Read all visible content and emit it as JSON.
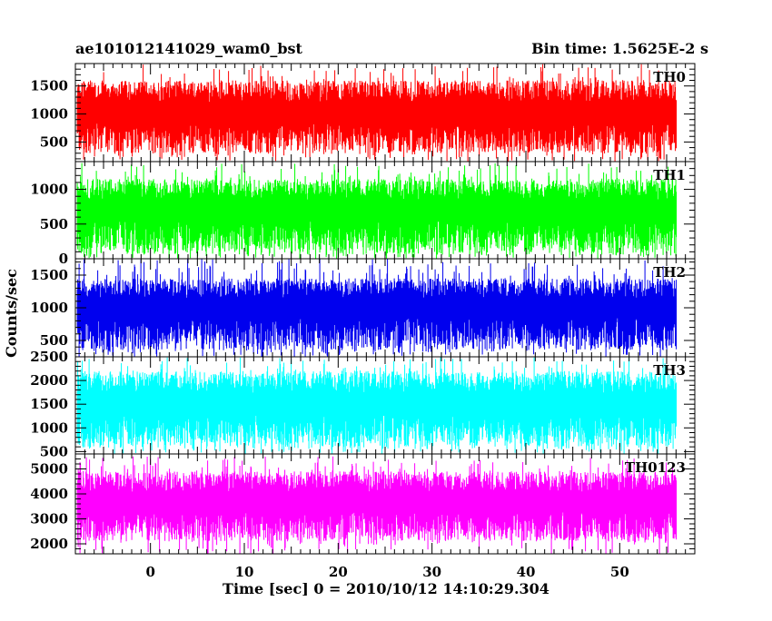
{
  "chart_data": {
    "type": "line",
    "title": "ae101012141029_wam0_bst",
    "subtitle": "Bin time: 1.5625E-2 s",
    "xlabel": "Time [sec] 0 = 2010/10/12 14:10:29.304",
    "ylabel": "Counts/sec",
    "xlim": [
      -8,
      58
    ],
    "xticks": [
      0,
      10,
      20,
      30,
      40,
      50
    ],
    "x_range_of_data": [
      -7.8,
      56.0
    ],
    "grid": false,
    "panels": [
      {
        "name": "TH0",
        "color": "#ff0000",
        "ylim": [
          150,
          1900
        ],
        "yticks": [
          500,
          1000,
          1500
        ],
        "baseline_range": [
          300,
          1600
        ],
        "typical_mean": 900,
        "spike_max": 1900
      },
      {
        "name": "TH1",
        "color": "#00ff00",
        "ylim": [
          0,
          1400
        ],
        "yticks": [
          0,
          500,
          1000
        ],
        "baseline_range": [
          80,
          1150
        ],
        "typical_mean": 600,
        "spike_max": 1380
      },
      {
        "name": "TH2",
        "color": "#0000ee",
        "ylim": [
          250,
          1750
        ],
        "yticks": [
          500,
          1000,
          1500
        ],
        "baseline_range": [
          350,
          1450
        ],
        "typical_mean": 900,
        "spike_max": 1750
      },
      {
        "name": "TH3",
        "color": "#00ffff",
        "ylim": [
          450,
          2500
        ],
        "yticks": [
          500,
          1000,
          1500,
          2000,
          2500
        ],
        "baseline_range": [
          600,
          2200
        ],
        "typical_mean": 1350,
        "spike_max": 2500
      },
      {
        "name": "TH0123",
        "color": "#ff00ff",
        "ylim": [
          1600,
          5600
        ],
        "yticks": [
          2000,
          3000,
          4000,
          5000
        ],
        "baseline_range": [
          2100,
          4900
        ],
        "typical_mean": 3400,
        "spike_max": 5500
      }
    ]
  }
}
